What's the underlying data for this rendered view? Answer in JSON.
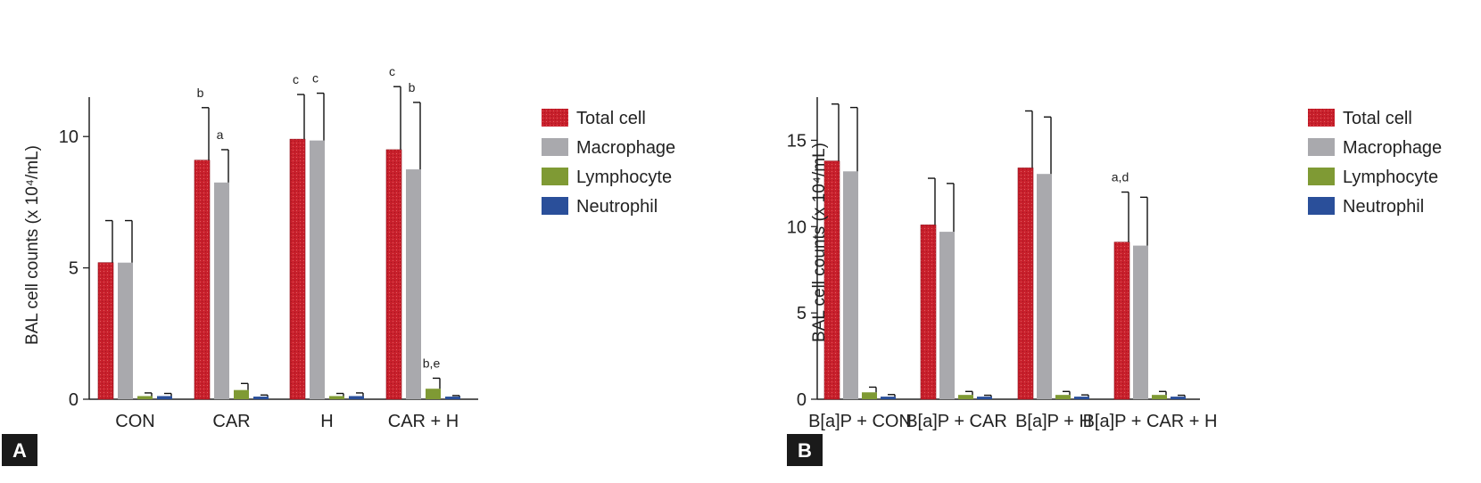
{
  "chart_data": [
    {
      "panel": "A",
      "type": "bar",
      "ylabel": "BAL cell counts (x 10⁴/mL)",
      "ylim": [
        0,
        11.5
      ],
      "yticks": [
        0,
        5,
        10
      ],
      "categories": [
        "CON",
        "CAR",
        "H",
        "CAR + H"
      ],
      "series": [
        {
          "name": "Total cell",
          "color": "#c8202c",
          "values": [
            5.2,
            9.1,
            9.9,
            9.5
          ],
          "errors": [
            1.6,
            2.0,
            1.7,
            2.4
          ]
        },
        {
          "name": "Macrophage",
          "color": "#a9a9ad",
          "values": [
            5.2,
            8.25,
            9.85,
            8.75
          ],
          "errors": [
            1.6,
            1.25,
            1.8,
            2.55
          ]
        },
        {
          "name": "Lymphocyte",
          "color": "#7f9a34",
          "values": [
            0.12,
            0.35,
            0.12,
            0.4
          ],
          "errors": [
            0.12,
            0.25,
            0.1,
            0.4
          ]
        },
        {
          "name": "Neutrophil",
          "color": "#2a4f9a",
          "values": [
            0.12,
            0.1,
            0.12,
            0.1
          ],
          "errors": [
            0.1,
            0.06,
            0.12,
            0.04
          ]
        }
      ],
      "annotations": [
        {
          "category": 1,
          "series": 0,
          "text": "b"
        },
        {
          "category": 1,
          "series": 1,
          "text": "a"
        },
        {
          "category": 2,
          "series": 0,
          "text": "c"
        },
        {
          "category": 2,
          "series": 1,
          "text": "c"
        },
        {
          "category": 3,
          "series": 0,
          "text": "c"
        },
        {
          "category": 3,
          "series": 1,
          "text": "b"
        },
        {
          "category": 3,
          "series": 2,
          "text": "b,e"
        }
      ]
    },
    {
      "panel": "B",
      "type": "bar",
      "ylabel": "BAL cell counts (x 10⁴/mL)",
      "ylim": [
        0,
        17.5
      ],
      "yticks": [
        0,
        5,
        10,
        15
      ],
      "categories": [
        "B[a]P + CON",
        "B[a]P + CAR",
        "B[a]P + H",
        "B[a]P + CAR + H"
      ],
      "series": [
        {
          "name": "Total cell",
          "color": "#c8202c",
          "values": [
            13.8,
            10.1,
            13.4,
            9.1
          ],
          "errors": [
            3.3,
            2.7,
            3.3,
            2.9
          ]
        },
        {
          "name": "Macrophage",
          "color": "#a9a9ad",
          "values": [
            13.2,
            9.7,
            13.05,
            8.9
          ],
          "errors": [
            3.7,
            2.8,
            3.3,
            2.8
          ]
        },
        {
          "name": "Lymphocyte",
          "color": "#7f9a34",
          "values": [
            0.4,
            0.25,
            0.25,
            0.25
          ],
          "errors": [
            0.3,
            0.2,
            0.2,
            0.2
          ]
        },
        {
          "name": "Neutrophil",
          "color": "#2a4f9a",
          "values": [
            0.15,
            0.15,
            0.15,
            0.15
          ],
          "errors": [
            0.12,
            0.08,
            0.1,
            0.08
          ]
        }
      ],
      "annotations": [
        {
          "category": 3,
          "series": 0,
          "text": "a,d"
        }
      ]
    }
  ],
  "legend": {
    "items": [
      {
        "label": "Total cell",
        "color": "#c8202c"
      },
      {
        "label": "Macrophage",
        "color": "#a9a9ad"
      },
      {
        "label": "Lymphocyte",
        "color": "#7f9a34"
      },
      {
        "label": "Neutrophil",
        "color": "#2a4f9a"
      }
    ]
  },
  "panel_labels": {
    "a": "A",
    "b": "B"
  }
}
